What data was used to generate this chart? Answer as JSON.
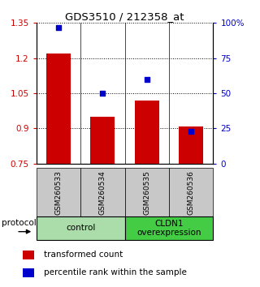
{
  "title": "GDS3510 / 212358_at",
  "samples": [
    "GSM260533",
    "GSM260534",
    "GSM260535",
    "GSM260536"
  ],
  "bar_values": [
    1.22,
    0.95,
    1.02,
    0.91
  ],
  "percentile_values": [
    97,
    50,
    60,
    23
  ],
  "bar_color": "#cc0000",
  "dot_color": "#0000cc",
  "ylim_left": [
    0.75,
    1.35
  ],
  "ylim_right": [
    0,
    100
  ],
  "yticks_left": [
    0.75,
    0.9,
    1.05,
    1.2,
    1.35
  ],
  "ytick_labels_left": [
    "0.75",
    "0.9",
    "1.05",
    "1.2",
    "1.35"
  ],
  "yticks_right": [
    0,
    25,
    50,
    75,
    100
  ],
  "ytick_labels_right": [
    "0",
    "25",
    "50",
    "75",
    "100%"
  ],
  "groups": [
    {
      "label": "control",
      "color": "#aaddaa"
    },
    {
      "label": "CLDN1\noverexpression",
      "color": "#44cc44"
    }
  ],
  "protocol_label": "protocol",
  "legend_bar_label": "transformed count",
  "legend_dot_label": "percentile rank within the sample",
  "bar_baseline": 0.75,
  "sample_box_color": "#c8c8c8",
  "left_axis_color": "#cc0000",
  "right_axis_color": "#0000cc"
}
